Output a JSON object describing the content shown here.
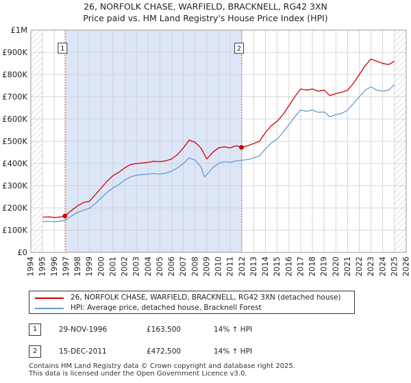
{
  "colors": {
    "price_paid": "#cc0000",
    "hpi": "#6699cc",
    "shade": "#dde6f7",
    "grid": "#cccccc",
    "marker_line": "#e06666"
  },
  "chart_data": {
    "type": "line",
    "title": "26, NORFOLK CHASE, WARFIELD, BRACKNELL, RG42 3XN",
    "subtitle": "Price paid vs. HM Land Registry's House Price Index (HPI)",
    "xlabel": "",
    "ylabel": "",
    "xlim": [
      1994,
      2026
    ],
    "ylim": [
      0,
      1000000
    ],
    "x_ticks": [
      1994,
      1995,
      1996,
      1997,
      1998,
      1999,
      2000,
      2001,
      2002,
      2003,
      2004,
      2005,
      2006,
      2007,
      2008,
      2009,
      2010,
      2011,
      2012,
      2013,
      2014,
      2015,
      2016,
      2017,
      2018,
      2019,
      2020,
      2021,
      2022,
      2023,
      2024,
      2025,
      2026
    ],
    "x_tick_labels": [
      "1994",
      "1995",
      "1996",
      "1997",
      "1998",
      "1999",
      "2000",
      "2001",
      "2002",
      "2003",
      "2004",
      "2005",
      "2006",
      "2007",
      "2008",
      "2009",
      "2010",
      "2011",
      "2012",
      "2013",
      "2014",
      "2015",
      "2016",
      "2017",
      "2018",
      "2019",
      "2020",
      "2021",
      "2022",
      "2023",
      "2024",
      "2025",
      "2026"
    ],
    "y_ticks": [
      0,
      100000,
      200000,
      300000,
      400000,
      500000,
      600000,
      700000,
      800000,
      900000,
      1000000
    ],
    "y_tick_labels": [
      "£0",
      "£100K",
      "£200K",
      "£300K",
      "£400K",
      "£500K",
      "£600K",
      "£700K",
      "£800K",
      "£900K",
      "£1M"
    ],
    "grid": true,
    "shaded_period": [
      1996.91,
      2011.96
    ],
    "hatched_regions": [
      [
        1994,
        1995
      ],
      [
        2025,
        2026
      ]
    ],
    "series": [
      {
        "name": "26, NORFOLK CHASE, WARFIELD, BRACKNELL, RG42 3XN (detached house)",
        "x": [
          1995.0,
          1995.5,
          1996.0,
          1996.5,
          1996.91,
          1997.5,
          1998.0,
          1998.5,
          1999.0,
          1999.5,
          2000.0,
          2000.5,
          2001.0,
          2001.5,
          2002.0,
          2002.5,
          2003.0,
          2003.5,
          2004.0,
          2004.5,
          2005.0,
          2005.5,
          2006.0,
          2006.5,
          2007.0,
          2007.5,
          2008.0,
          2008.5,
          2008.8,
          2009.0,
          2009.5,
          2010.0,
          2010.5,
          2011.0,
          2011.5,
          2011.96,
          2012.5,
          2013.0,
          2013.5,
          2014.0,
          2014.5,
          2015.0,
          2015.5,
          2016.0,
          2016.5,
          2017.0,
          2017.5,
          2018.0,
          2018.5,
          2019.0,
          2019.5,
          2020.0,
          2020.5,
          2021.0,
          2021.5,
          2022.0,
          2022.5,
          2023.0,
          2023.5,
          2024.0,
          2024.5,
          2025.0
        ],
        "values": [
          158000,
          160000,
          157000,
          159000,
          163500,
          190000,
          210000,
          225000,
          230000,
          260000,
          290000,
          320000,
          345000,
          360000,
          380000,
          395000,
          400000,
          402000,
          405000,
          410000,
          408000,
          412000,
          420000,
          440000,
          470000,
          505000,
          495000,
          470000,
          440000,
          420000,
          450000,
          470000,
          475000,
          470000,
          480000,
          472500,
          480000,
          490000,
          500000,
          540000,
          570000,
          590000,
          620000,
          660000,
          700000,
          735000,
          730000,
          735000,
          725000,
          730000,
          705000,
          715000,
          720000,
          730000,
          760000,
          800000,
          840000,
          870000,
          860000,
          850000,
          845000,
          860000
        ]
      },
      {
        "name": "HPI: Average price, detached house, Bracknell Forest",
        "x": [
          1995.0,
          1995.5,
          1996.0,
          1996.5,
          1996.91,
          1997.5,
          1998.0,
          1998.5,
          1999.0,
          1999.5,
          2000.0,
          2000.5,
          2001.0,
          2001.5,
          2002.0,
          2002.5,
          2003.0,
          2003.5,
          2004.0,
          2004.5,
          2005.0,
          2005.5,
          2006.0,
          2006.5,
          2007.0,
          2007.5,
          2008.0,
          2008.5,
          2008.8,
          2009.0,
          2009.5,
          2010.0,
          2010.5,
          2011.0,
          2011.5,
          2011.96,
          2012.5,
          2013.0,
          2013.5,
          2014.0,
          2014.5,
          2015.0,
          2015.5,
          2016.0,
          2016.5,
          2017.0,
          2017.5,
          2018.0,
          2018.5,
          2019.0,
          2019.5,
          2020.0,
          2020.5,
          2021.0,
          2021.5,
          2022.0,
          2022.5,
          2023.0,
          2023.5,
          2024.0,
          2024.5,
          2025.0
        ],
        "values": [
          138000,
          140000,
          138000,
          141000,
          143000,
          165000,
          180000,
          190000,
          198000,
          220000,
          245000,
          270000,
          290000,
          305000,
          325000,
          340000,
          347000,
          350000,
          352000,
          355000,
          352000,
          356000,
          365000,
          380000,
          400000,
          425000,
          415000,
          385000,
          340000,
          350000,
          380000,
          400000,
          408000,
          405000,
          412000,
          414000,
          418000,
          425000,
          435000,
          465000,
          492000,
          510000,
          540000,
          575000,
          610000,
          640000,
          635000,
          640000,
          630000,
          632000,
          610000,
          620000,
          625000,
          640000,
          670000,
          700000,
          730000,
          745000,
          730000,
          725000,
          730000,
          755000
        ]
      }
    ],
    "annotations": [
      {
        "label": "1",
        "x": 1996.91,
        "value": 163500
      },
      {
        "label": "2",
        "x": 2011.96,
        "value": 472500
      }
    ]
  },
  "legend": {
    "items": [
      {
        "label": "26, NORFOLK CHASE, WARFIELD, BRACKNELL, RG42 3XN (detached house)"
      },
      {
        "label": "HPI: Average price, detached house, Bracknell Forest"
      }
    ]
  },
  "transactions": [
    {
      "num": "1",
      "date": "29-NOV-1996",
      "price": "£163,500",
      "hpi": "14% ↑ HPI"
    },
    {
      "num": "2",
      "date": "15-DEC-2011",
      "price": "£472,500",
      "hpi": "14% ↑ HPI"
    }
  ],
  "footer": {
    "line1": "Contains HM Land Registry data © Crown copyright and database right 2025.",
    "line2": "This data is licensed under the Open Government Licence v3.0."
  }
}
